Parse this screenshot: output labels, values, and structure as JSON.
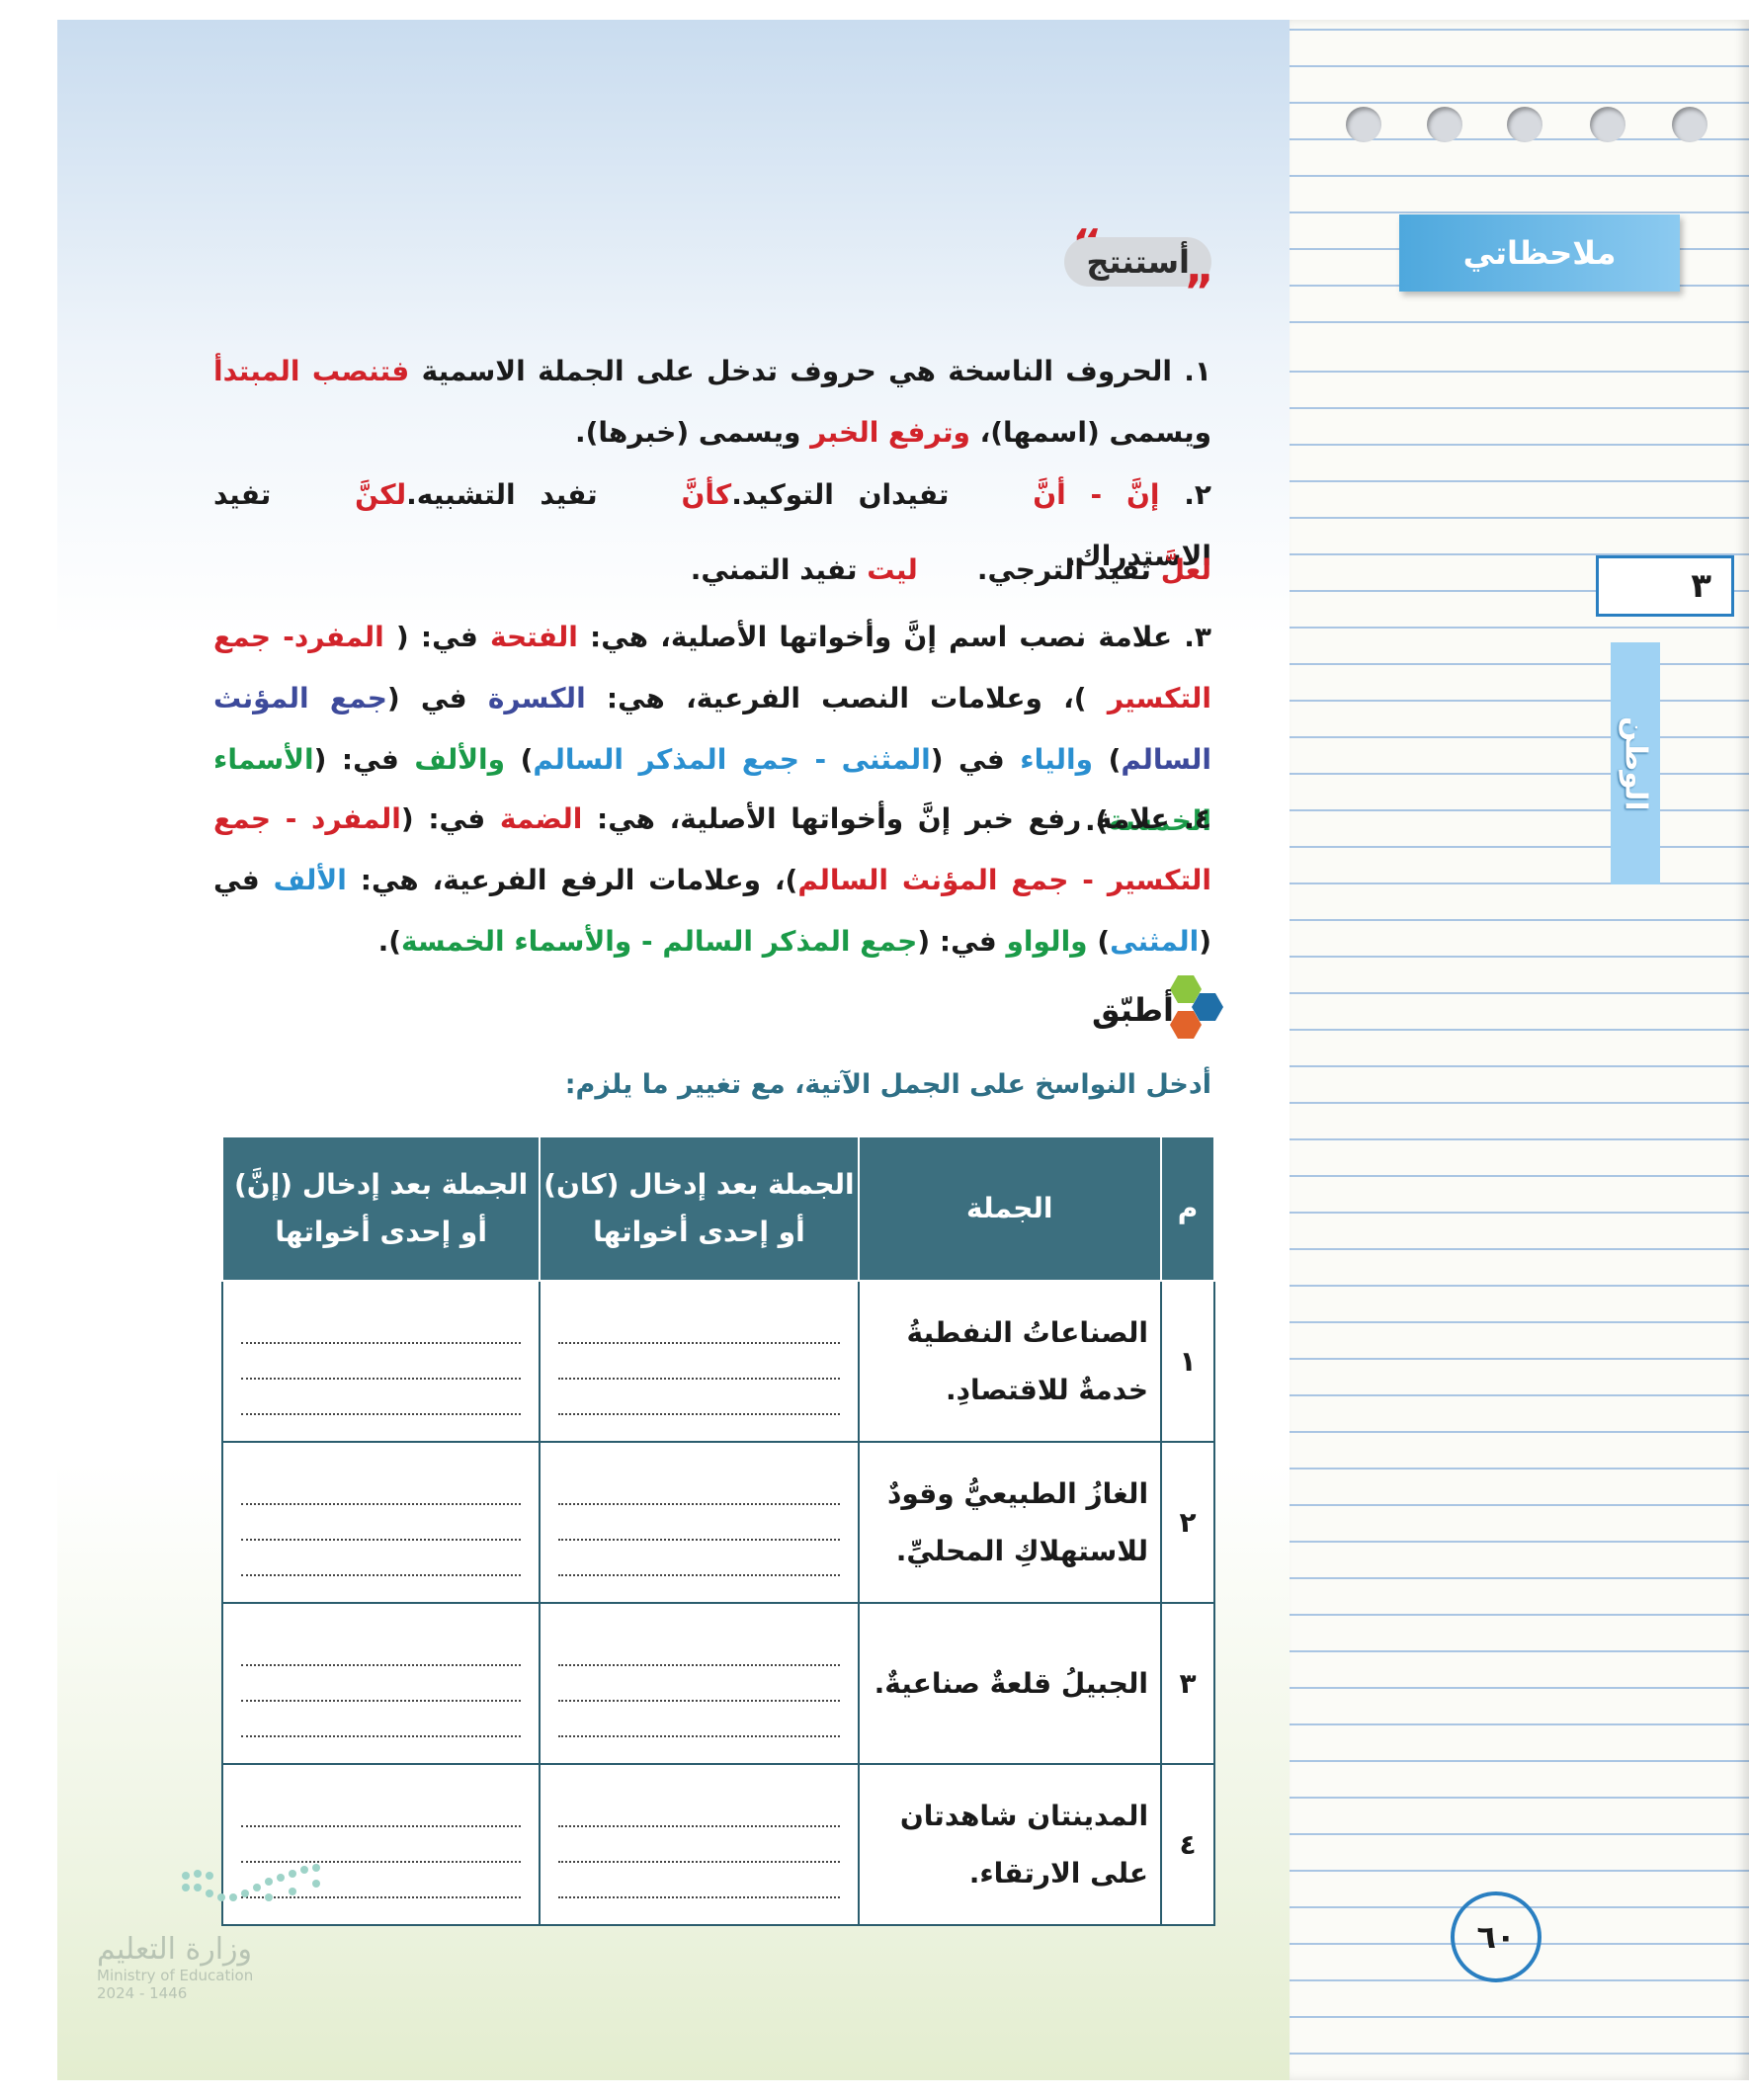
{
  "sidebar": {
    "title": "ملاحظاتي",
    "unit": "٣",
    "theme": "الوطن"
  },
  "section_title": "أستنتج",
  "points": [
    [
      {
        "text": "١. الحروف الناسخة هي حروف تدخل على الجملة الاسمية ",
        "color": "#1a1a1a"
      },
      {
        "text": "فتنصب المبتدأ",
        "color": "#d2232a"
      },
      {
        "text": " ويسمى (اسمها)، ",
        "color": "#1a1a1a"
      },
      {
        "text": "وترفع الخبر",
        "color": "#d2232a"
      },
      {
        "text": " ويسمى (خبرها).",
        "color": "#1a1a1a"
      }
    ],
    [
      {
        "text": "٢. ",
        "color": "#1a1a1a"
      },
      {
        "text": "إنَّ - أنَّ",
        "color": "#d2232a"
      },
      {
        "text": " تفيدان التوكيد.",
        "color": "#1a1a1a"
      },
      {
        "text": "كأنَّ",
        "color": "#d2232a"
      },
      {
        "text": " تفيد التشبيه.",
        "color": "#1a1a1a"
      },
      {
        "text": "لكنَّ",
        "color": "#d2232a"
      },
      {
        "text": " تفيد الاستدراك.",
        "color": "#1a1a1a"
      }
    ],
    [
      {
        "text": "لعلَّ",
        "color": "#d2232a"
      },
      {
        "text": " تفيد الترجي.",
        "color": "#1a1a1a"
      },
      {
        "text": "ليت",
        "color": "#d2232a"
      },
      {
        "text": " تفيد التمني.",
        "color": "#1a1a1a"
      }
    ],
    [
      {
        "text": "٣. علامة نصب اسم إنَّ وأخواتها الأصلية، هي: ",
        "color": "#1a1a1a"
      },
      {
        "text": "الفتحة",
        "color": "#d2232a"
      },
      {
        "text": " في: ( ",
        "color": "#1a1a1a"
      },
      {
        "text": "المفرد- جمع التكسير",
        "color": "#d2232a"
      },
      {
        "text": " )، وعلامات النصب الفرعية، هي: ",
        "color": "#1a1a1a"
      },
      {
        "text": "الكسرة",
        "color": "#3d4a9b"
      },
      {
        "text": " في (",
        "color": "#1a1a1a"
      },
      {
        "text": "جمع المؤنث السالم",
        "color": "#3d4a9b"
      },
      {
        "text": ") ",
        "color": "#1a1a1a"
      },
      {
        "text": "والياء",
        "color": "#2a8fd0"
      },
      {
        "text": " في (",
        "color": "#1a1a1a"
      },
      {
        "text": "المثنى - جمع المذكر السالم",
        "color": "#2a8fd0"
      },
      {
        "text": ") ",
        "color": "#1a1a1a"
      },
      {
        "text": "والألف",
        "color": "#1a9a48"
      },
      {
        "text": " في: (",
        "color": "#1a1a1a"
      },
      {
        "text": "الأسماء الخمسة",
        "color": "#1a9a48"
      },
      {
        "text": ").",
        "color": "#1a1a1a"
      }
    ],
    [
      {
        "text": "٤. علامة رفع خبر إنَّ وأخواتها الأصلية، هي: ",
        "color": "#1a1a1a"
      },
      {
        "text": "الضمة",
        "color": "#d2232a"
      },
      {
        "text": " في: (",
        "color": "#1a1a1a"
      },
      {
        "text": "المفرد - جمع التكسير - جمع المؤنث السالم",
        "color": "#d2232a"
      },
      {
        "text": ")، وعلامات الرفع الفرعية، هي: ",
        "color": "#1a1a1a"
      },
      {
        "text": "الألف",
        "color": "#2a8fd0"
      },
      {
        "text": " في (",
        "color": "#1a1a1a"
      },
      {
        "text": "المثنى",
        "color": "#2a8fd0"
      },
      {
        "text": ") ",
        "color": "#1a1a1a"
      },
      {
        "text": "والواو",
        "color": "#1a9a48"
      },
      {
        "text": " في: (",
        "color": "#1a1a1a"
      },
      {
        "text": "جمع المذكر السالم - والأسماء الخمسة",
        "color": "#1a9a48"
      },
      {
        "text": ").",
        "color": "#1a1a1a"
      }
    ]
  ],
  "practice": {
    "title": "أطبّق",
    "instruction": "أدخل النواسخ على الجمل الآتية، مع تغيير ما يلزم:",
    "table": {
      "headers": [
        "م",
        "الجملة",
        "الجملة بعد إدخال (كان) أو إحدى أخواتها",
        "الجملة بعد إدخال (إنَّ) أو إحدى أخواتها"
      ],
      "rows": [
        [
          "١",
          "الصناعاتُ النفطيةُ خدمةٌ للاقتصادِ."
        ],
        [
          "٢",
          "الغازُ الطبيعيُّ وقودٌ للاستهلاكِ المحليِّ."
        ],
        [
          "٣",
          "الجبيلُ قلعةٌ صناعيةٌ."
        ],
        [
          "٤",
          "المدينتان شاهدتان على الارتقاء."
        ]
      ]
    }
  },
  "page_number": "٦٠",
  "logo": {
    "name": "وزارة التعليم",
    "english": "Ministry of Education",
    "year": "2024 - 1446"
  }
}
